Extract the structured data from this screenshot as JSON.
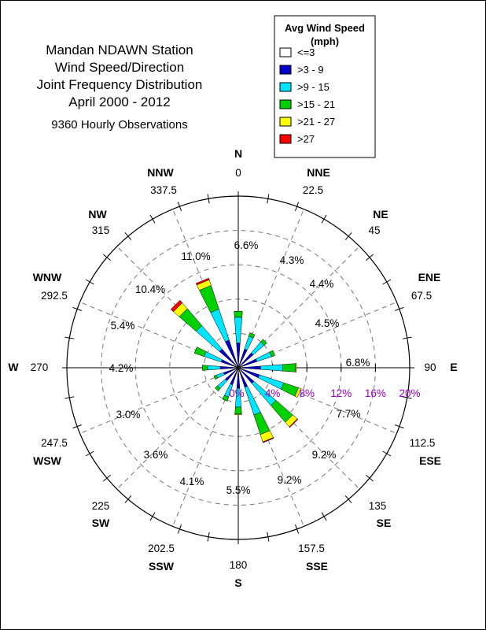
{
  "chart_data": {
    "type": "wind-rose",
    "title_lines": [
      "Mandan NDAWN Station",
      "Wind Speed/Direction",
      "Joint Frequency Distribution",
      "April 2000 - 2012"
    ],
    "subtitle": "9360 Hourly Observations",
    "legend": {
      "title_line1": "Avg Wind Speed",
      "title_line2": "(mph)",
      "placement": "top-right"
    },
    "speed_bins": [
      {
        "label": "<=3",
        "color": "#ffffff"
      },
      {
        "label": ">3 - 9",
        "color": "#0000c8"
      },
      {
        "label": ">9 - 15",
        "color": "#00e5ff"
      },
      {
        "label": ">15 - 21",
        "color": "#00d000"
      },
      {
        "label": ">21 - 27",
        "color": "#ffff00"
      },
      {
        "label": ">27",
        "color": "#ff0000"
      }
    ],
    "radial_axis": {
      "max": 20,
      "rings": [
        4,
        8,
        12,
        16,
        20
      ],
      "ring_labels": [
        "4%",
        "8%",
        "12%",
        "16%",
        "20%"
      ],
      "center_label": "0%",
      "label_color": "#9900cc"
    },
    "compass_labels": [
      {
        "name": "N",
        "deg": "0"
      },
      {
        "name": "NNE",
        "deg": "22.5"
      },
      {
        "name": "NE",
        "deg": "45"
      },
      {
        "name": "ENE",
        "deg": "67.5"
      },
      {
        "name": "E",
        "deg": "90"
      },
      {
        "name": "ESE",
        "deg": "112.5"
      },
      {
        "name": "SE",
        "deg": "135"
      },
      {
        "name": "SSE",
        "deg": "157.5"
      },
      {
        "name": "S",
        "deg": "180"
      },
      {
        "name": "SSW",
        "deg": "202.5"
      },
      {
        "name": "SW",
        "deg": "225"
      },
      {
        "name": "WSW",
        "deg": "247.5"
      },
      {
        "name": "W",
        "deg": "270"
      },
      {
        "name": "WNW",
        "deg": "292.5"
      },
      {
        "name": "NW",
        "deg": "315"
      },
      {
        "name": "NNW",
        "deg": "337.5"
      }
    ],
    "directions": [
      {
        "dir": "N",
        "angle": 0,
        "total_label": "6.6%",
        "segments": [
          0.4,
          2.5,
          3.0,
          0.7,
          0.0,
          0.0
        ]
      },
      {
        "dir": "NNE",
        "angle": 22.5,
        "total_label": "4.3%",
        "segments": [
          0.3,
          2.0,
          1.6,
          0.4,
          0.0,
          0.0
        ]
      },
      {
        "dir": "NE",
        "angle": 45,
        "total_label": "4.4%",
        "segments": [
          0.3,
          2.0,
          1.7,
          0.4,
          0.0,
          0.0
        ]
      },
      {
        "dir": "ENE",
        "angle": 67.5,
        "total_label": "4.5%",
        "segments": [
          0.3,
          2.0,
          1.8,
          0.4,
          0.0,
          0.0
        ]
      },
      {
        "dir": "E",
        "angle": 90,
        "total_label": "6.8%",
        "segments": [
          0.4,
          2.2,
          2.6,
          1.5,
          0.1,
          0.0
        ]
      },
      {
        "dir": "ESE",
        "angle": 112.5,
        "total_label": "7.7%",
        "segments": [
          0.4,
          2.2,
          3.0,
          1.8,
          0.3,
          0.0
        ]
      },
      {
        "dir": "SE",
        "angle": 135,
        "total_label": "9.2%",
        "segments": [
          0.4,
          2.0,
          3.4,
          2.6,
          0.7,
          0.1
        ]
      },
      {
        "dir": "SSE",
        "angle": 157.5,
        "total_label": "9.2%",
        "segments": [
          0.4,
          2.0,
          3.4,
          2.4,
          0.9,
          0.1
        ]
      },
      {
        "dir": "S",
        "angle": 180,
        "total_label": "5.5%",
        "segments": [
          0.4,
          2.0,
          2.2,
          0.8,
          0.1,
          0.0
        ]
      },
      {
        "dir": "SSW",
        "angle": 202.5,
        "total_label": "4.1%",
        "segments": [
          0.3,
          1.8,
          1.5,
          0.5,
          0.0,
          0.0
        ]
      },
      {
        "dir": "SW",
        "angle": 225,
        "total_label": "3.6%",
        "segments": [
          0.3,
          1.7,
          1.2,
          0.4,
          0.0,
          0.0
        ]
      },
      {
        "dir": "WSW",
        "angle": 247.5,
        "total_label": "3.0%",
        "segments": [
          0.3,
          1.5,
          0.9,
          0.3,
          0.0,
          0.0
        ]
      },
      {
        "dir": "W",
        "angle": 270,
        "total_label": "4.2%",
        "segments": [
          0.3,
          1.8,
          1.5,
          0.6,
          0.0,
          0.0
        ]
      },
      {
        "dir": "WNW",
        "angle": 292.5,
        "total_label": "5.4%",
        "segments": [
          0.3,
          1.8,
          2.1,
          1.2,
          0.0,
          0.0
        ]
      },
      {
        "dir": "NW",
        "angle": 315,
        "total_label": "10.4%",
        "segments": [
          0.4,
          2.5,
          3.6,
          2.6,
          0.9,
          0.4
        ]
      },
      {
        "dir": "NNW",
        "angle": 337.5,
        "total_label": "11.0%",
        "segments": [
          0.4,
          3.0,
          3.8,
          2.9,
          0.7,
          0.2
        ]
      }
    ]
  }
}
